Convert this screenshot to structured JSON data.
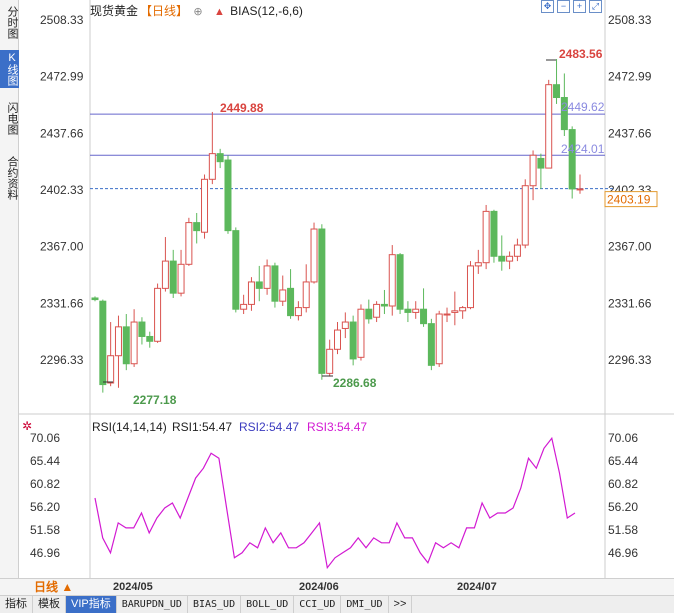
{
  "side_tabs": [
    "分时图",
    "K线图",
    "闪电图",
    "合约资料"
  ],
  "header": {
    "title": "现货黄金",
    "period": "【日线】",
    "indicator": "BIAS(12,-6,6)"
  },
  "price_axis": {
    "ticks": [
      "2508.33",
      "2472.99",
      "2437.66",
      "2402.33",
      "2367.00",
      "2331.66",
      "2296.33"
    ],
    "current_label": "2403.19",
    "right_tick_2402": "2402.33"
  },
  "annotations": {
    "high_label": "2483.56",
    "mid_high_label": "2449.88",
    "low1_label": "2277.18",
    "low2_label": "2286.68",
    "line1_label": "2449.62",
    "line2_label": "2424.01"
  },
  "rsi": {
    "legend": "RSI(14,14,14)",
    "rsi1": "RSI1:54.47",
    "rsi2": "RSI2:54.47",
    "rsi3": "RSI3:54.47",
    "ticks": [
      "70.06",
      "65.44",
      "60.82",
      "56.20",
      "51.58",
      "46.96"
    ]
  },
  "bottom": {
    "period_button": "日线 ▲",
    "dates": [
      "2024/05",
      "2024/06",
      "2024/07"
    ]
  },
  "indicator_tabs": [
    "指标",
    "模板",
    "VIP指标",
    "BARUPDN_UD",
    "BIAS_UD",
    "BOLL_UD",
    "CCI_UD",
    "DMI_UD",
    ">>"
  ],
  "colors": {
    "up": "#d9534f",
    "down": "#5cb85c",
    "rsi_line": "#d21ad2",
    "level_line": "#6666cc",
    "current_line": "#3b6fc8",
    "high_text": "#d9443f",
    "low_text": "#4c9a4c"
  },
  "chart_data": {
    "type": "candlestick",
    "ylim": [
      2270,
      2510
    ],
    "candles": [
      {
        "o": 2335,
        "h": 2336,
        "l": 2333,
        "c": 2334
      },
      {
        "o": 2333,
        "h": 2334,
        "l": 2276,
        "c": 2281
      },
      {
        "o": 2282,
        "h": 2320,
        "l": 2280,
        "c": 2299
      },
      {
        "o": 2299,
        "h": 2324,
        "l": 2279,
        "c": 2317
      },
      {
        "o": 2317,
        "h": 2325,
        "l": 2290,
        "c": 2294
      },
      {
        "o": 2294,
        "h": 2328,
        "l": 2292,
        "c": 2320
      },
      {
        "o": 2320,
        "h": 2323,
        "l": 2306,
        "c": 2311
      },
      {
        "o": 2311,
        "h": 2314,
        "l": 2304,
        "c": 2308
      },
      {
        "o": 2308,
        "h": 2344,
        "l": 2307,
        "c": 2341
      },
      {
        "o": 2341,
        "h": 2373,
        "l": 2339,
        "c": 2358
      },
      {
        "o": 2358,
        "h": 2365,
        "l": 2335,
        "c": 2338
      },
      {
        "o": 2338,
        "h": 2365,
        "l": 2336,
        "c": 2356
      },
      {
        "o": 2356,
        "h": 2385,
        "l": 2355,
        "c": 2382
      },
      {
        "o": 2382,
        "h": 2388,
        "l": 2369,
        "c": 2377
      },
      {
        "o": 2376,
        "h": 2412,
        "l": 2372,
        "c": 2409
      },
      {
        "o": 2409,
        "h": 2451,
        "l": 2406,
        "c": 2425
      },
      {
        "o": 2425,
        "h": 2428,
        "l": 2416,
        "c": 2420
      },
      {
        "o": 2421,
        "h": 2424,
        "l": 2375,
        "c": 2377
      },
      {
        "o": 2377,
        "h": 2379,
        "l": 2326,
        "c": 2328
      },
      {
        "o": 2328,
        "h": 2337,
        "l": 2325,
        "c": 2331
      },
      {
        "o": 2331,
        "h": 2348,
        "l": 2327,
        "c": 2345
      },
      {
        "o": 2345,
        "h": 2355,
        "l": 2333,
        "c": 2341
      },
      {
        "o": 2341,
        "h": 2359,
        "l": 2337,
        "c": 2355
      },
      {
        "o": 2355,
        "h": 2357,
        "l": 2329,
        "c": 2333
      },
      {
        "o": 2333,
        "h": 2349,
        "l": 2330,
        "c": 2340
      },
      {
        "o": 2341,
        "h": 2353,
        "l": 2322,
        "c": 2324
      },
      {
        "o": 2324,
        "h": 2333,
        "l": 2321,
        "c": 2329
      },
      {
        "o": 2329,
        "h": 2356,
        "l": 2326,
        "c": 2345
      },
      {
        "o": 2345,
        "h": 2382,
        "l": 2344,
        "c": 2378
      },
      {
        "o": 2378,
        "h": 2381,
        "l": 2284,
        "c": 2288
      },
      {
        "o": 2288,
        "h": 2309,
        "l": 2286,
        "c": 2303
      },
      {
        "o": 2303,
        "h": 2320,
        "l": 2300,
        "c": 2315
      },
      {
        "o": 2316,
        "h": 2326,
        "l": 2310,
        "c": 2320
      },
      {
        "o": 2320,
        "h": 2324,
        "l": 2293,
        "c": 2297
      },
      {
        "o": 2298,
        "h": 2331,
        "l": 2296,
        "c": 2328
      },
      {
        "o": 2328,
        "h": 2334,
        "l": 2319,
        "c": 2322
      },
      {
        "o": 2323,
        "h": 2333,
        "l": 2320,
        "c": 2331
      },
      {
        "o": 2331,
        "h": 2340,
        "l": 2325,
        "c": 2330
      },
      {
        "o": 2330,
        "h": 2368,
        "l": 2324,
        "c": 2362
      },
      {
        "o": 2362,
        "h": 2363,
        "l": 2325,
        "c": 2328
      },
      {
        "o": 2328,
        "h": 2333,
        "l": 2320,
        "c": 2326
      },
      {
        "o": 2326,
        "h": 2333,
        "l": 2322,
        "c": 2328
      },
      {
        "o": 2328,
        "h": 2341,
        "l": 2317,
        "c": 2319
      },
      {
        "o": 2319,
        "h": 2322,
        "l": 2290,
        "c": 2293
      },
      {
        "o": 2294,
        "h": 2327,
        "l": 2292,
        "c": 2325
      },
      {
        "o": 2325,
        "h": 2329,
        "l": 2320,
        "c": 2325
      },
      {
        "o": 2326,
        "h": 2339,
        "l": 2318,
        "c": 2327
      },
      {
        "o": 2327,
        "h": 2330,
        "l": 2322,
        "c": 2329
      },
      {
        "o": 2329,
        "h": 2358,
        "l": 2328,
        "c": 2355
      },
      {
        "o": 2355,
        "h": 2365,
        "l": 2350,
        "c": 2357
      },
      {
        "o": 2357,
        "h": 2393,
        "l": 2353,
        "c": 2389
      },
      {
        "o": 2389,
        "h": 2390,
        "l": 2357,
        "c": 2361
      },
      {
        "o": 2361,
        "h": 2374,
        "l": 2352,
        "c": 2358
      },
      {
        "o": 2358,
        "h": 2364,
        "l": 2353,
        "c": 2361
      },
      {
        "o": 2361,
        "h": 2372,
        "l": 2358,
        "c": 2368
      },
      {
        "o": 2368,
        "h": 2409,
        "l": 2366,
        "c": 2405
      },
      {
        "o": 2405,
        "h": 2427,
        "l": 2396,
        "c": 2424
      },
      {
        "o": 2422,
        "h": 2425,
        "l": 2403,
        "c": 2416
      },
      {
        "o": 2416,
        "h": 2471,
        "l": 2416,
        "c": 2468
      },
      {
        "o": 2468,
        "h": 2484,
        "l": 2456,
        "c": 2460
      },
      {
        "o": 2460,
        "h": 2475,
        "l": 2436,
        "c": 2440
      },
      {
        "o": 2440,
        "h": 2442,
        "l": 2397,
        "c": 2403
      },
      {
        "o": 2403,
        "h": 2412,
        "l": 2400,
        "c": 2403
      }
    ],
    "level_lines": [
      2449.62,
      2424.01
    ],
    "current_price": 2403.19,
    "rsi_ylim": [
      42,
      72
    ],
    "rsi_values": [
      58,
      50,
      47,
      53,
      52,
      52,
      55,
      51,
      54,
      56,
      57,
      54,
      58,
      62,
      64,
      67,
      66,
      56,
      46,
      47,
      49,
      48,
      52,
      49,
      51,
      48,
      48,
      49,
      51,
      53,
      44,
      46,
      47,
      48,
      50,
      48,
      50,
      49,
      49,
      53,
      50,
      50,
      47,
      45,
      49,
      48,
      49,
      48,
      52,
      52,
      57,
      54,
      55,
      55,
      56,
      60,
      66,
      64,
      68,
      70,
      63,
      54,
      55
    ]
  }
}
